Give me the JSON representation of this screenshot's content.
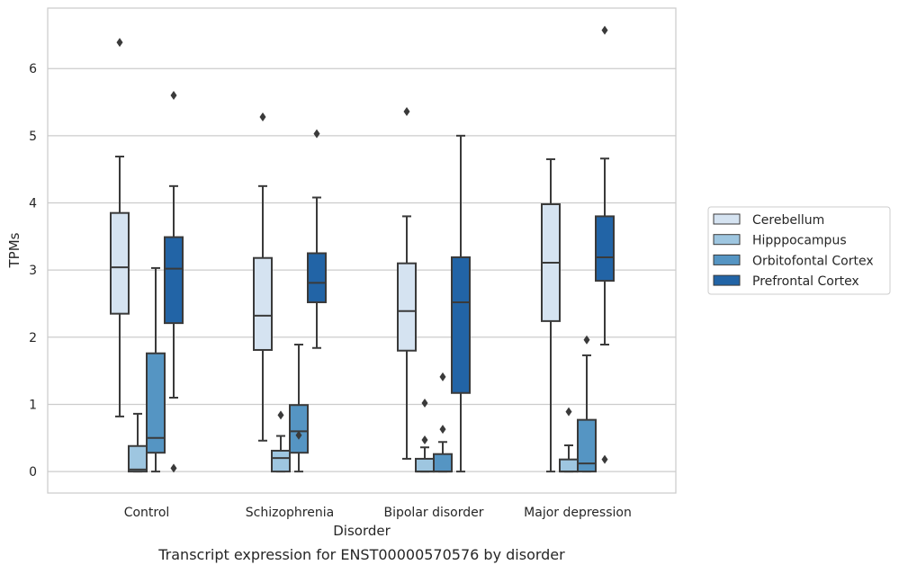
{
  "chart_data": {
    "type": "box",
    "title": "",
    "caption": "Transcript expression for ENST00000570576 by disorder",
    "xlabel": "Disorder",
    "ylabel": "TPMs",
    "ylim": [
      -0.32,
      6.9
    ],
    "yticks": [
      0,
      1,
      2,
      3,
      4,
      5,
      6
    ],
    "grid": "horizontal",
    "legend_position": "right",
    "categories": [
      "Control",
      "Schizophrenia",
      "Bipolar disorder",
      "Major depression"
    ],
    "series": [
      {
        "name": "Cerebellum",
        "color": "#d5e3f1",
        "boxes": [
          {
            "low": 0.82,
            "q1": 2.35,
            "median": 3.04,
            "q3": 3.85,
            "high": 4.69,
            "outliers": [
              6.39
            ]
          },
          {
            "low": 0.46,
            "q1": 1.81,
            "median": 2.32,
            "q3": 3.18,
            "high": 4.25,
            "outliers": [
              5.28
            ]
          },
          {
            "low": 0.19,
            "q1": 1.8,
            "median": 2.39,
            "q3": 3.1,
            "high": 3.8,
            "outliers": [
              5.36
            ]
          },
          {
            "low": 0.0,
            "q1": 2.24,
            "median": 3.11,
            "q3": 3.98,
            "high": 4.65,
            "outliers": []
          }
        ]
      },
      {
        "name": "Hipppocampus",
        "color": "#9ec6e0",
        "boxes": [
          {
            "low": 0.0,
            "q1": 0.0,
            "median": 0.03,
            "q3": 0.38,
            "high": 0.86,
            "outliers": []
          },
          {
            "low": 0.0,
            "q1": 0.0,
            "median": 0.2,
            "q3": 0.31,
            "high": 0.53,
            "outliers": [
              0.84
            ]
          },
          {
            "low": 0.0,
            "q1": 0.0,
            "median": 0.0,
            "q3": 0.19,
            "high": 0.36,
            "outliers": [
              0.47,
              1.02
            ]
          },
          {
            "low": 0.0,
            "q1": 0.0,
            "median": 0.0,
            "q3": 0.18,
            "high": 0.39,
            "outliers": [
              0.89
            ]
          }
        ]
      },
      {
        "name": "Orbitofontal Cortex",
        "color": "#5595c3",
        "boxes": [
          {
            "low": 0.0,
            "q1": 0.28,
            "median": 0.5,
            "q3": 1.76,
            "high": 3.03,
            "outliers": []
          },
          {
            "low": 0.0,
            "q1": 0.28,
            "median": 0.6,
            "q3": 0.99,
            "high": 1.89,
            "outliers": [
              0.54
            ]
          },
          {
            "low": 0.0,
            "q1": 0.0,
            "median": 0.0,
            "q3": 0.26,
            "high": 0.44,
            "outliers": [
              0.63,
              1.41
            ]
          },
          {
            "low": 0.0,
            "q1": 0.0,
            "median": 0.12,
            "q3": 0.77,
            "high": 1.73,
            "outliers": [
              1.96
            ]
          }
        ]
      },
      {
        "name": "Prefrontal Cortex",
        "color": "#2264a6",
        "boxes": [
          {
            "low": 1.1,
            "q1": 2.21,
            "median": 3.02,
            "q3": 3.49,
            "high": 4.25,
            "outliers": [
              5.6,
              0.05
            ]
          },
          {
            "low": 1.84,
            "q1": 2.52,
            "median": 2.81,
            "q3": 3.25,
            "high": 4.08,
            "outliers": [
              5.03
            ]
          },
          {
            "low": 0.0,
            "q1": 1.17,
            "median": 2.52,
            "q3": 3.19,
            "high": 5.0,
            "outliers": []
          },
          {
            "low": 1.89,
            "q1": 2.84,
            "median": 3.19,
            "q3": 3.8,
            "high": 4.66,
            "outliers": [
              6.57,
              0.18
            ]
          }
        ]
      }
    ]
  }
}
